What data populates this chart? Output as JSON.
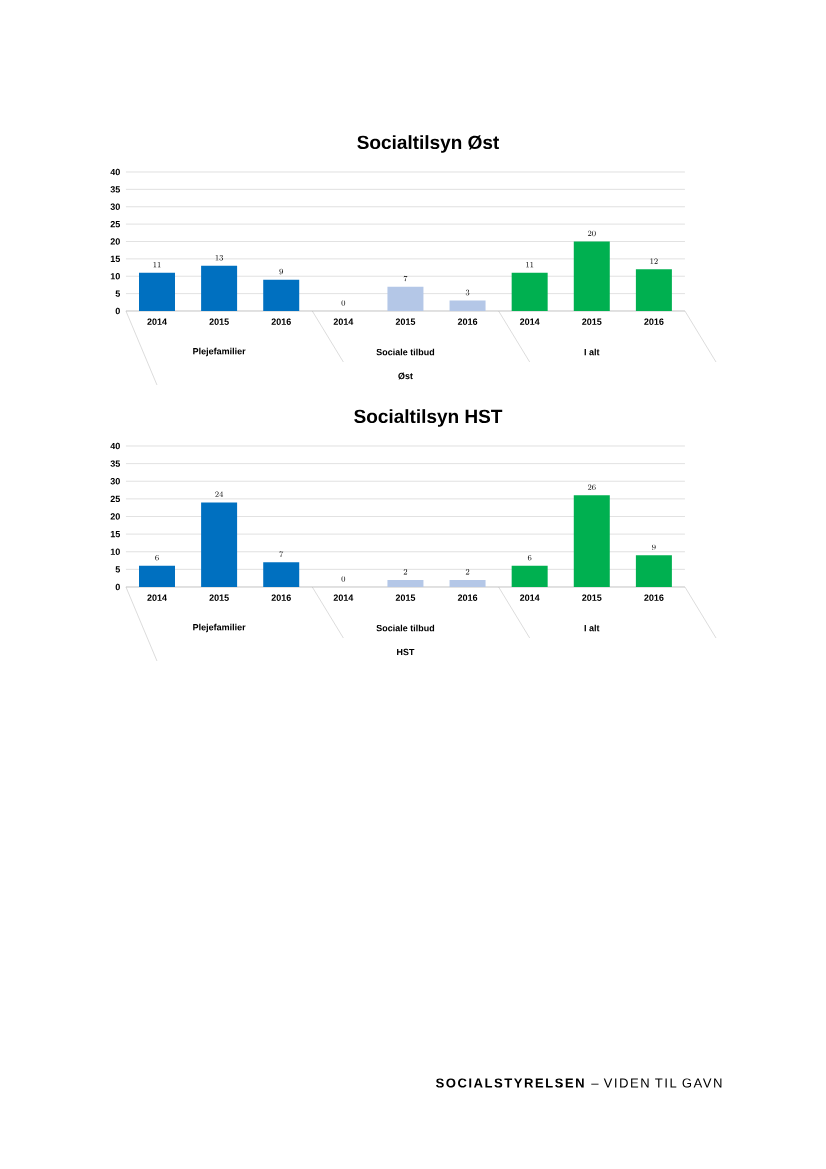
{
  "chart_data": [
    {
      "type": "bar",
      "title": "Socialtilsyn Øst",
      "xlabel": "Øst",
      "categories": [
        "2014",
        "2015",
        "2016",
        "2014",
        "2015",
        "2016",
        "2014",
        "2015",
        "2016"
      ],
      "values": [
        11,
        13,
        9,
        0,
        7,
        3,
        11,
        20,
        12
      ],
      "colors": [
        "#0070c0",
        "#0070c0",
        "#0070c0",
        "#b4c7e7",
        "#b4c7e7",
        "#b4c7e7",
        "#00b050",
        "#00b050",
        "#00b050"
      ],
      "ylim": [
        0,
        40
      ],
      "yticks": [
        0,
        5,
        10,
        15,
        20,
        25,
        30,
        35,
        40
      ],
      "grid": "y",
      "data_labels": true,
      "annotations": [
        "Plejefamilier",
        "Sociale tilbud",
        "I alt"
      ]
    },
    {
      "type": "bar",
      "title": "Socialtilsyn HST",
      "xlabel": "HST",
      "categories": [
        "2014",
        "2015",
        "2016",
        "2014",
        "2015",
        "2016",
        "2014",
        "2015",
        "2016"
      ],
      "values": [
        6,
        24,
        7,
        0,
        2,
        2,
        6,
        26,
        9
      ],
      "colors": [
        "#0070c0",
        "#0070c0",
        "#0070c0",
        "#b4c7e7",
        "#b4c7e7",
        "#b4c7e7",
        "#00b050",
        "#00b050",
        "#00b050"
      ],
      "ylim": [
        0,
        40
      ],
      "yticks": [
        0,
        5,
        10,
        15,
        20,
        25,
        30,
        35,
        40
      ],
      "grid": "y",
      "data_labels": true,
      "annotations": [
        "Plejefamilier",
        "Sociale tilbud",
        "I alt",
        "**SOCIALSTYRELSEN** – VIDEN TIL GAVN"
      ]
    }
  ]
}
